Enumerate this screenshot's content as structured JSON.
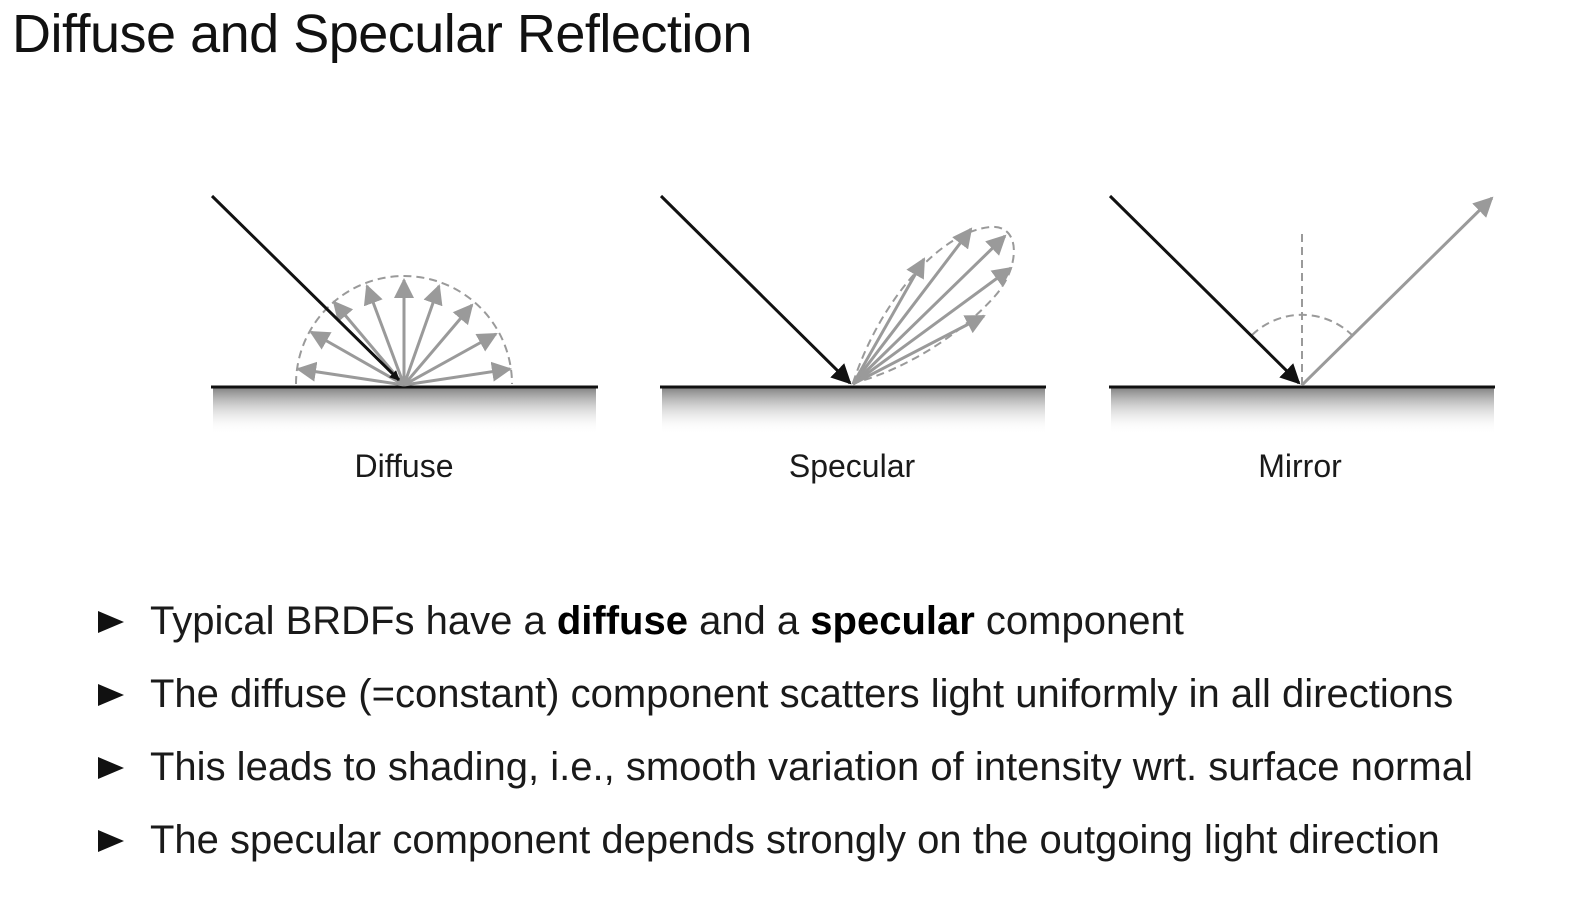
{
  "title": "Diffuse and Specular Reflection",
  "figures": [
    {
      "label": "Diffuse"
    },
    {
      "label": "Specular"
    },
    {
      "label": "Mirror"
    }
  ],
  "bullets": [
    {
      "parts": [
        "Typical BRDFs have a ",
        "diffuse",
        " and a ",
        "specular",
        " component"
      ]
    },
    {
      "text": "The diffuse (=constant) component scatters light uniformly in all directions"
    },
    {
      "text": "This leads to shading, i.e., smooth variation of intensity wrt. surface normal"
    },
    {
      "text": "The specular component depends strongly on the outgoing light direction"
    }
  ],
  "colors": {
    "incident_ray": "#111111",
    "reflected_ray": "#9a9a9a",
    "surface": "#111111"
  },
  "icons": {
    "bullet": "right-pointing-triangle-icon"
  }
}
